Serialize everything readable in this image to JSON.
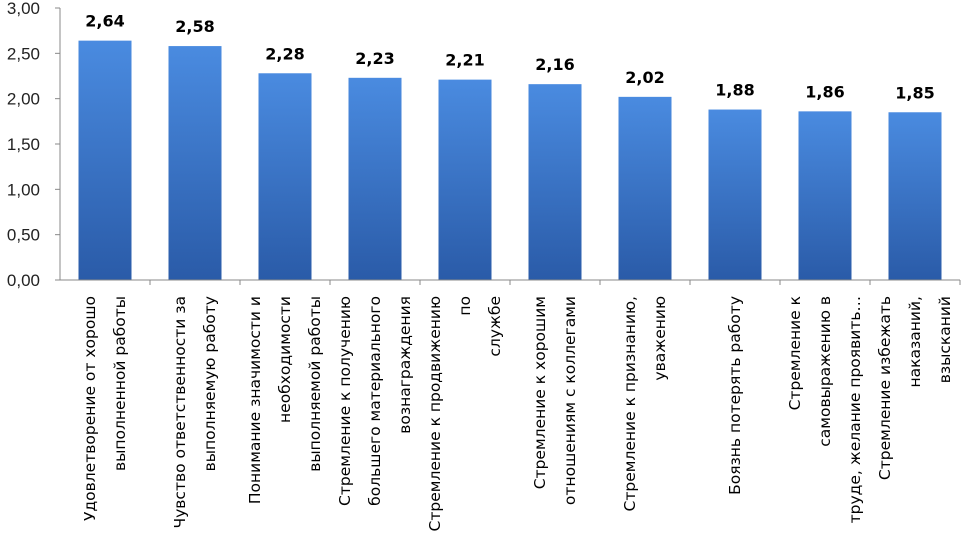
{
  "chart_data": {
    "type": "bar",
    "categories": [
      [
        "Удовлетворение от хорошо",
        "выполненной работы"
      ],
      [
        "Чувство ответственности за",
        "выполняемую работу"
      ],
      [
        "Понимание значимости и",
        "необходимости",
        "выполняемой работы"
      ],
      [
        "Стремление к получению",
        "большего материального",
        "вознаграждения"
      ],
      [
        "Стремление к продвижению",
        "по",
        "службе"
      ],
      [
        "Стремление к хорошим",
        "отношениям с коллегами"
      ],
      [
        "Стремление к признанию,",
        "уважению"
      ],
      [
        "Боязнь потерять работу"
      ],
      [
        "Стремление к",
        "самовыражению в",
        "труде, желание проявить…"
      ],
      [
        "Стремление избежать",
        "наказаний,",
        "взысканий"
      ]
    ],
    "values": [
      2.64,
      2.58,
      2.28,
      2.23,
      2.21,
      2.16,
      2.02,
      1.88,
      1.86,
      1.85
    ],
    "value_labels": [
      "2,64",
      "2,58",
      "2,28",
      "2,23",
      "2,21",
      "2,16",
      "2,02",
      "1,88",
      "1,86",
      "1,85"
    ],
    "ylim": [
      0,
      3
    ],
    "yticks": [
      0,
      0.5,
      1,
      1.5,
      2,
      2.5,
      3
    ],
    "ytick_labels": [
      "0,00",
      "0,50",
      "1,00",
      "1,50",
      "2,00",
      "2,50",
      "3,00"
    ],
    "title": "",
    "xlabel": "",
    "ylabel": "",
    "grid": false,
    "legend": false,
    "colors": {
      "bar_light": "#4a8be0",
      "bar_dark": "#2a5ba8",
      "axis": "#888888"
    }
  }
}
